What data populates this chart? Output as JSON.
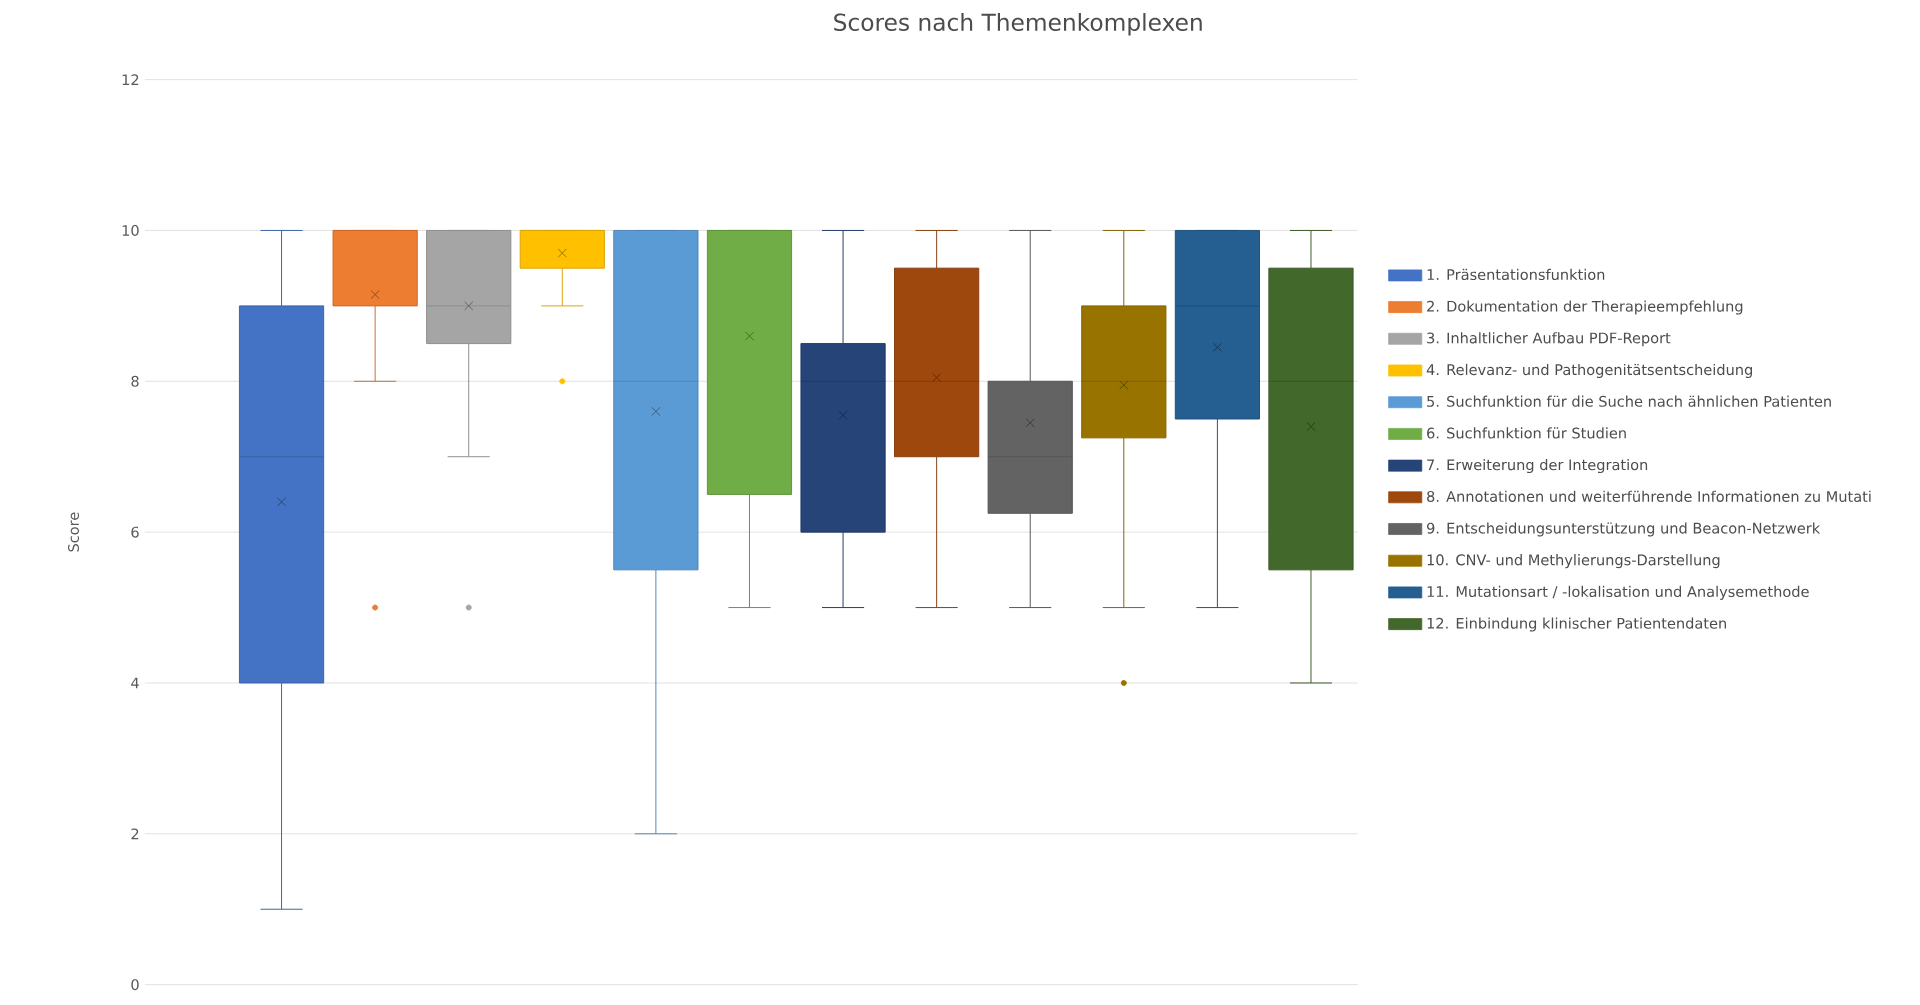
{
  "chart_data": {
    "type": "box",
    "title": "Scores nach Themenkomplexen",
    "ylabel": "Score",
    "categories": [
      null
    ],
    "ylim": [
      0,
      12
    ],
    "yticks": [
      0,
      2,
      4,
      6,
      8,
      10,
      12
    ],
    "grid": "y",
    "legend": "right",
    "series": [
      {
        "name": "1. Präsentationsfunktion",
        "color": "#4472c4",
        "boxes": [
          {
            "low": 1,
            "q1": 4,
            "median": 7,
            "q3": 9,
            "high": 10,
            "mean": 6.4
          }
        ]
      },
      {
        "name": "2. Dokumentation der Therapieempfehlung",
        "color": "#ed7d31",
        "boxes": [
          {
            "low": 8,
            "q1": 9,
            "median": 10,
            "q3": 10,
            "high": 10,
            "mean": 9.15,
            "outliers": [
              5
            ]
          }
        ]
      },
      {
        "name": "3. Inhaltlicher Aufbau PDF-Report",
        "color": "#a5a5a5",
        "boxes": [
          {
            "low": 7,
            "q1": 8.5,
            "median": 9,
            "q3": 10,
            "high": 10,
            "mean": 9,
            "outliers": [
              5
            ]
          }
        ]
      },
      {
        "name": "4. Relevanz- und Pathogenitätsentscheidung",
        "color": "#ffc000",
        "boxes": [
          {
            "low": 9,
            "q1": 9.5,
            "median": 10,
            "q3": 10,
            "high": 10,
            "mean": 9.7,
            "outliers": [
              8
            ]
          }
        ]
      },
      {
        "name": "5. Suchfunktion für die Suche nach ähnlichen Patienten",
        "color": "#5b9bd5",
        "boxes": [
          {
            "low": 2,
            "q1": 5.5,
            "median": 8,
            "q3": 10,
            "high": 10,
            "mean": 7.6
          }
        ]
      },
      {
        "name": "6. Suchfunktion für Studien",
        "color": "#70ad47",
        "boxes": [
          {
            "low": 5,
            "q1": 6.5,
            "median": 10,
            "q3": 10,
            "high": 10,
            "mean": 8.6
          }
        ]
      },
      {
        "name": "7. Erweiterung der Integration",
        "color": "#264478",
        "boxes": [
          {
            "low": 5,
            "q1": 6,
            "median": 8,
            "q3": 8.5,
            "high": 10,
            "mean": 7.55
          }
        ]
      },
      {
        "name": "8. Annotationen und weiterführende Informationen zu Mutati",
        "color": "#9e480e",
        "boxes": [
          {
            "low": 5,
            "q1": 7,
            "median": 8,
            "q3": 9.5,
            "high": 10,
            "mean": 8.05
          }
        ]
      },
      {
        "name": "9. Entscheidungsunterstützung und Beacon-Netzwerk",
        "color": "#636363",
        "boxes": [
          {
            "low": 5,
            "q1": 6.25,
            "median": 7,
            "q3": 8,
            "high": 10,
            "mean": 7.45
          }
        ]
      },
      {
        "name": "10. CNV- und Methylierungs-Darstellung",
        "color": "#997300",
        "boxes": [
          {
            "low": 5,
            "q1": 7.25,
            "median": 8,
            "q3": 9,
            "high": 10,
            "mean": 7.95,
            "outliers": [
              4
            ]
          }
        ]
      },
      {
        "name": "11. Mutationsart / -lokalisation und Analysemethode",
        "color": "#255e91",
        "boxes": [
          {
            "low": 5,
            "q1": 7.5,
            "median": 9,
            "q3": 10,
            "high": 10,
            "mean": 8.45
          }
        ]
      },
      {
        "name": "12. Einbindung klinischer Patientendaten",
        "color": "#43682b",
        "boxes": [
          {
            "low": 4,
            "q1": 5.5,
            "median": 8,
            "q3": 9.5,
            "high": 10,
            "mean": 7.4
          }
        ]
      }
    ]
  }
}
